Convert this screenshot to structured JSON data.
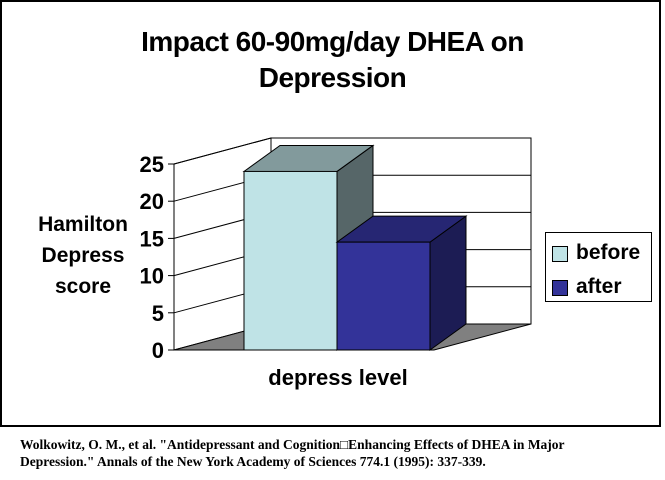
{
  "chart_data": {
    "type": "bar",
    "title_lines": [
      "Impact 60-90mg/day DHEA on",
      "Depression"
    ],
    "ylabel_lines": [
      "Hamilton",
      "Depress",
      "score"
    ],
    "xlabel": "depress level",
    "categories": [
      "depress level"
    ],
    "series": [
      {
        "name": "before",
        "values": [
          24
        ],
        "color": "#BFE3E6"
      },
      {
        "name": "after",
        "values": [
          14.5
        ],
        "color": "#333399"
      }
    ],
    "ylim": [
      0,
      25
    ],
    "yticks": [
      "0",
      "5",
      "10",
      "15",
      "20",
      "25"
    ],
    "grid": true,
    "legend_position": "right",
    "style": "3d"
  },
  "citation": {
    "line1": "Wolkowitz, O. M., et al. \"Antidepressant and Cognition□Enhancing Effects of DHEA in Major",
    "line2": "Depression.\" Annals of the New York Academy of Sciences 774.1 (1995): 337-339."
  }
}
